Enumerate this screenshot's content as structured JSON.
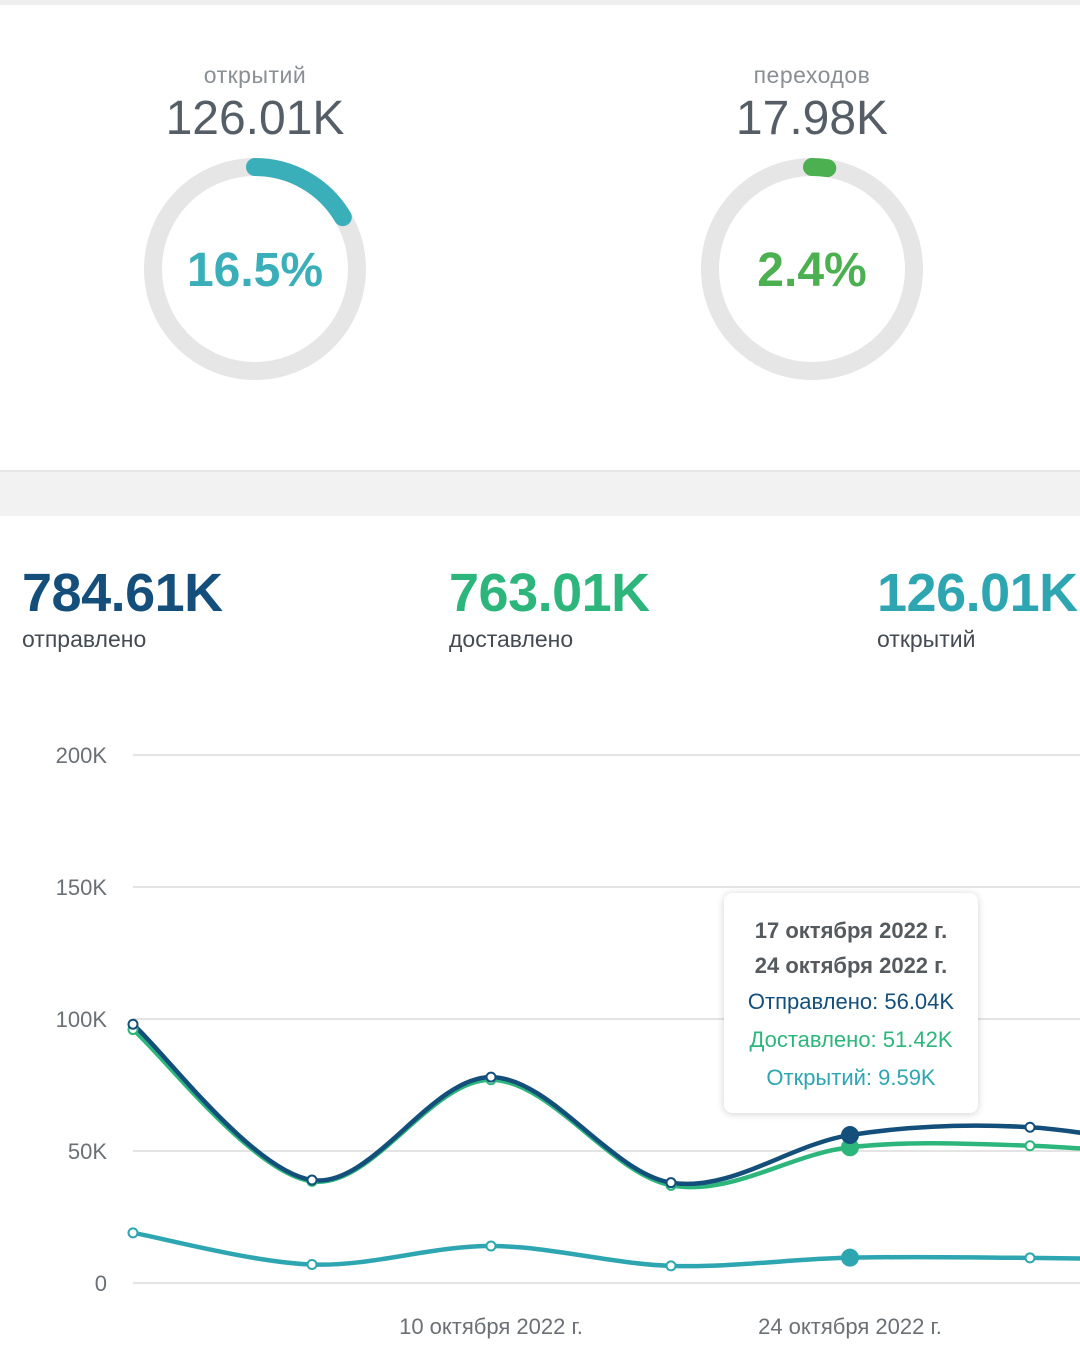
{
  "gauges": [
    {
      "label": "открытий",
      "value": "126.01K",
      "percent_text": "16.5%",
      "percent": 16.5,
      "color": "#3aaeb9"
    },
    {
      "label": "переходов",
      "value": "17.98K",
      "percent_text": "2.4%",
      "percent": 2.4,
      "color": "#4caf50"
    }
  ],
  "stats": [
    {
      "value": "784.61K",
      "label": "отправлено",
      "color": "#134f7a"
    },
    {
      "value": "763.01K",
      "label": "доставлено",
      "color": "#2db67c"
    },
    {
      "value": "126.01K",
      "label": "открытий",
      "color": "#2ea6b2"
    }
  ],
  "tooltip": {
    "date1": "17 октября 2022 г.",
    "date2": "24 октября 2022 г.",
    "sent": "Отправлено: 56.04K",
    "delivered": "Доставлено: 51.42K",
    "opened": "Открытий: 9.59K"
  },
  "chart_data": {
    "type": "line",
    "y_ticks": [
      "200K",
      "150K",
      "100K",
      "50K",
      "0"
    ],
    "ylim": [
      0,
      200000
    ],
    "x_tick_labels": [
      {
        "label": "10 октября 2022 г.",
        "index": 2
      },
      {
        "label": "24 октября 2022 г.",
        "index": 4
      }
    ],
    "grid": true,
    "series": [
      {
        "name": "Отправлено",
        "color": "#134f7a",
        "values": [
          98000,
          39000,
          78000,
          38000,
          56040,
          59000,
          48000
        ]
      },
      {
        "name": "Доставлено",
        "color": "#2db67c",
        "values": [
          96000,
          38500,
          77000,
          37000,
          51420,
          52000,
          47000
        ]
      },
      {
        "name": "Открытий",
        "color": "#2ea6b2",
        "values": [
          19000,
          7000,
          14000,
          6500,
          9590,
          9500,
          8500
        ]
      }
    ],
    "highlight_index": 4
  }
}
